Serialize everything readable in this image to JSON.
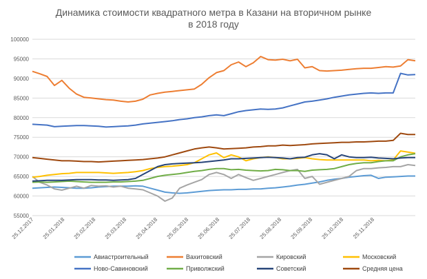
{
  "chart_data": {
    "type": "line",
    "title": "Динамика стоимости квадратного метра в Казани на вторичном рынке",
    "subtitle": "в 2018 году",
    "xlabel": "",
    "ylabel": "",
    "ylim": [
      55000,
      100000
    ],
    "yticks": [
      55000,
      60000,
      65000,
      70000,
      75000,
      80000,
      85000,
      90000,
      95000,
      100000
    ],
    "x_tick_labels": [
      "25.12.2017",
      "25.01.2018",
      "25.02.2018",
      "25.03.2018",
      "25.04.2018",
      "25.05.2018",
      "25.06.2018",
      "25.07.2018",
      "25.08.2018",
      "25.09.2018",
      "25.10.2018",
      "25.11.2018"
    ],
    "points_per_series": 53,
    "grid": "horizontal",
    "legend_position": "bottom",
    "series": [
      {
        "name": "Авиастроительный",
        "color": "#5b9bd5",
        "values": [
          62000,
          62100,
          62200,
          62300,
          62200,
          62100,
          62000,
          62000,
          62100,
          62300,
          62400,
          62500,
          62500,
          62500,
          62600,
          62500,
          62000,
          61500,
          61000,
          60800,
          60700,
          60800,
          61000,
          61200,
          61400,
          61500,
          61600,
          61600,
          61700,
          61700,
          61800,
          61800,
          62000,
          62100,
          62300,
          62500,
          62800,
          63000,
          63300,
          63600,
          64000,
          64300,
          64500,
          64800,
          65000,
          65200,
          65300,
          64500,
          64800,
          64900,
          65000,
          65100,
          65100
        ]
      },
      {
        "name": "Вахитовский",
        "color": "#ed7d31",
        "values": [
          91800,
          91200,
          90500,
          88200,
          89500,
          87500,
          86000,
          85200,
          85000,
          84800,
          84600,
          84500,
          84200,
          84000,
          84200,
          84700,
          85800,
          86200,
          86500,
          86700,
          86900,
          87100,
          87300,
          88500,
          90200,
          91500,
          92000,
          93500,
          94200,
          93000,
          94000,
          95600,
          94800,
          94700,
          94900,
          94500,
          94900,
          92700,
          93000,
          92000,
          91900,
          92000,
          92100,
          92300,
          92500,
          92600,
          92600,
          92800,
          93000,
          92900,
          93200,
          94800,
          94500
        ]
      },
      {
        "name": "Кировский",
        "color": "#a5a5a5",
        "values": [
          65000,
          63500,
          62800,
          61800,
          61500,
          62000,
          62500,
          62000,
          62700,
          62500,
          62600,
          62300,
          62500,
          62000,
          61800,
          61600,
          60800,
          60000,
          58700,
          59500,
          62000,
          62800,
          63500,
          64200,
          65500,
          66000,
          65500,
          64500,
          65500,
          64700,
          64000,
          64500,
          65000,
          65500,
          66000,
          66500,
          66800,
          64500,
          65000,
          63000,
          63500,
          64000,
          64500,
          65000,
          66500,
          67000,
          67000,
          67200,
          67300,
          67500,
          67500,
          68000,
          67800
        ]
      },
      {
        "name": "Московский",
        "color": "#ffc000",
        "values": [
          64800,
          65000,
          65300,
          65500,
          65700,
          65800,
          66000,
          66000,
          66000,
          66000,
          65900,
          65800,
          65900,
          66000,
          66200,
          66500,
          67000,
          67300,
          67500,
          67600,
          67800,
          68000,
          68500,
          69500,
          70500,
          71000,
          69800,
          70500,
          70000,
          69000,
          69500,
          69800,
          70000,
          69800,
          69500,
          69500,
          69600,
          69800,
          69500,
          69300,
          69200,
          69200,
          69200,
          69200,
          69200,
          69200,
          69000,
          69100,
          69000,
          69200,
          71500,
          71200,
          70900
        ]
      },
      {
        "name": "Ново-Савиновский",
        "color": "#4472c4",
        "values": [
          78300,
          78200,
          78100,
          77700,
          77800,
          77900,
          78000,
          78000,
          77900,
          77800,
          77600,
          77700,
          77800,
          77900,
          78100,
          78400,
          78600,
          78800,
          79000,
          79200,
          79500,
          79700,
          80000,
          80200,
          80500,
          80700,
          80500,
          81000,
          81500,
          81800,
          82000,
          82200,
          82100,
          82200,
          82500,
          83000,
          83500,
          84000,
          84200,
          84500,
          84800,
          85200,
          85500,
          85800,
          86000,
          86200,
          86300,
          86200,
          86300,
          86300,
          91300,
          90900,
          91000
        ]
      },
      {
        "name": "Приволжский",
        "color": "#70ad47",
        "values": [
          63500,
          63600,
          63500,
          63600,
          63700,
          63800,
          63700,
          63600,
          63500,
          63500,
          63500,
          63600,
          63600,
          63700,
          63800,
          64000,
          64500,
          65000,
          65300,
          65500,
          65700,
          66000,
          66300,
          66500,
          66800,
          67000,
          67000,
          66700,
          66800,
          66600,
          66500,
          66400,
          66500,
          66800,
          66700,
          66500,
          66500,
          66300,
          66600,
          66700,
          66800,
          67000,
          67500,
          68000,
          68300,
          68500,
          68500,
          68800,
          69000,
          69000,
          70000,
          70500,
          70800
        ]
      },
      {
        "name": "Советский",
        "color": "#264478",
        "values": [
          63800,
          63900,
          64000,
          64000,
          64000,
          64100,
          64200,
          64200,
          64200,
          64100,
          64100,
          64000,
          64100,
          64200,
          64500,
          65500,
          66500,
          67500,
          68000,
          68200,
          68300,
          68400,
          68500,
          68600,
          68800,
          69000,
          69200,
          69500,
          69500,
          69600,
          69700,
          69800,
          69900,
          69800,
          69700,
          69500,
          69800,
          69900,
          70500,
          70800,
          70500,
          69500,
          70500,
          70000,
          69800,
          69800,
          69900,
          69700,
          69600,
          69500,
          69700,
          69800,
          69800
        ]
      },
      {
        "name": "Средняя цена",
        "color": "#9e480e",
        "values": [
          69800,
          69600,
          69400,
          69200,
          69000,
          69000,
          68900,
          68800,
          68800,
          68700,
          68800,
          68900,
          69000,
          69100,
          69200,
          69300,
          69500,
          69700,
          70000,
          70500,
          71000,
          71500,
          72000,
          72300,
          72500,
          72300,
          72000,
          72100,
          72200,
          72300,
          72500,
          72600,
          72800,
          72800,
          73000,
          72900,
          73000,
          73100,
          73300,
          73400,
          73500,
          73600,
          73700,
          73700,
          73800,
          73800,
          73900,
          74000,
          74000,
          74200,
          76000,
          75700,
          75700
        ]
      }
    ]
  }
}
